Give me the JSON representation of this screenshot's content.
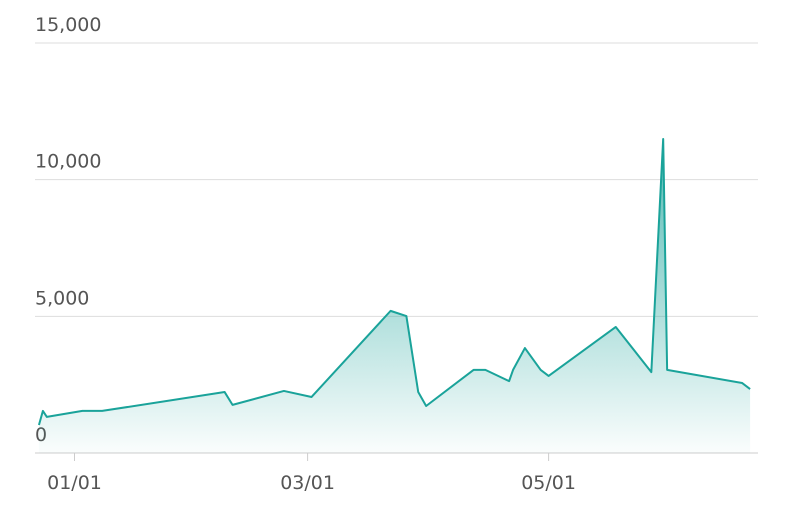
{
  "chart_data": {
    "type": "area",
    "x": [
      "12/23",
      "12/24",
      "12/25",
      "01/03",
      "01/08",
      "02/08",
      "02/10",
      "02/23",
      "03/02",
      "03/22",
      "03/26",
      "03/29",
      "03/31",
      "04/12",
      "04/15",
      "04/21",
      "04/22",
      "04/25",
      "04/29",
      "05/01",
      "05/18",
      "05/27",
      "05/30",
      "05/31",
      "06/19",
      "06/21"
    ],
    "values": [
      1025,
      1540,
      1320,
      1540,
      1540,
      2230,
      1760,
      2270,
      2050,
      5200,
      5010,
      2230,
      1720,
      3040,
      3040,
      2630,
      3040,
      3840,
      3040,
      2820,
      4610,
      2960,
      11490,
      3040,
      2560,
      2340
    ],
    "color": "#1aa39a",
    "xlim": [
      "12/22",
      "06/23"
    ],
    "xticks": [
      "01/01",
      "03/01",
      "05/01"
    ],
    "ylim": [
      0,
      15000
    ],
    "yticks": [
      0,
      {
        "value": 5000,
        "label": "5,000"
      },
      {
        "value": 10000,
        "label": "10,000"
      },
      {
        "value": 15000,
        "label": "15,000"
      }
    ],
    "grid": true
  }
}
